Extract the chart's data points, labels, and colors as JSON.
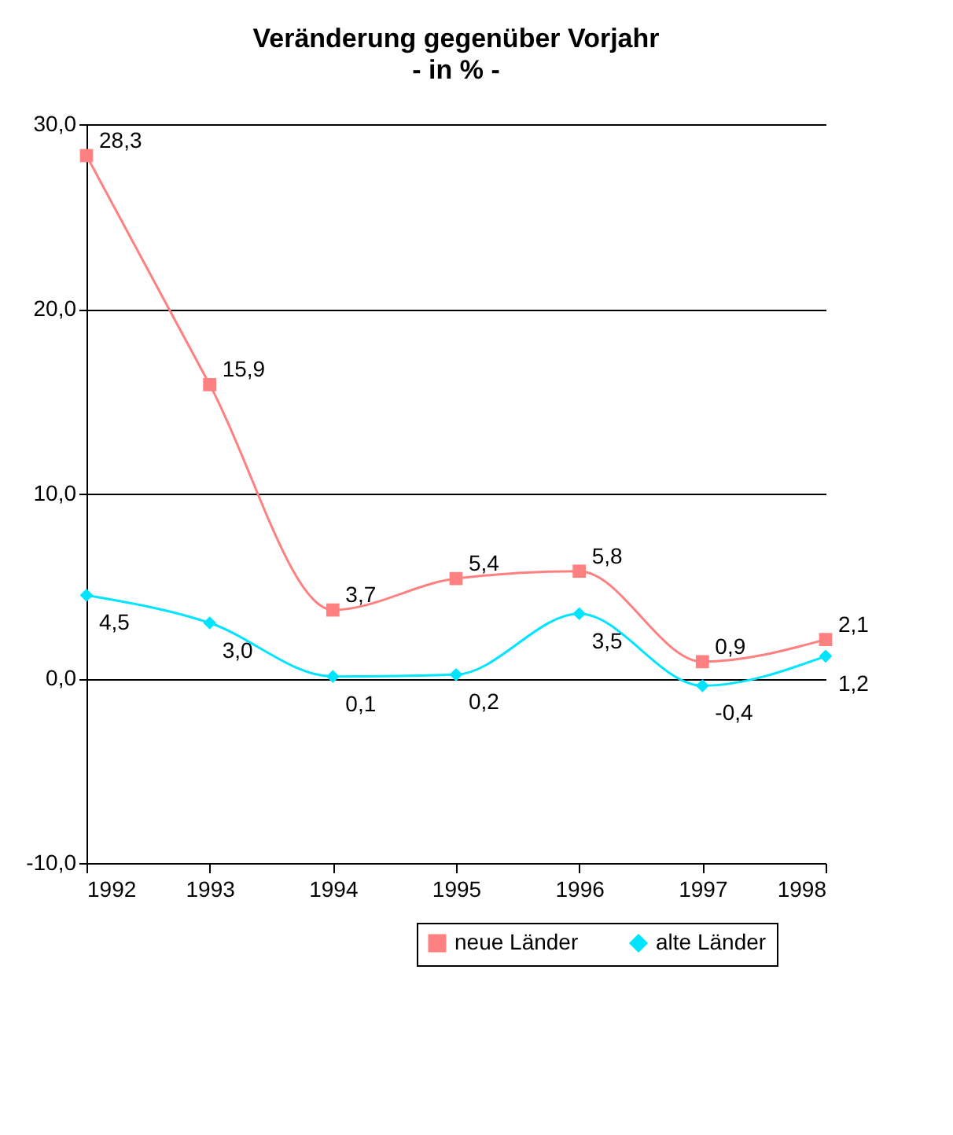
{
  "chart_data": {
    "type": "line",
    "title": "Veränderung gegenüber Vorjahr",
    "subtitle": "- in % -",
    "categories": [
      "1992",
      "1993",
      "1994",
      "1995",
      "1996",
      "1997",
      "1998"
    ],
    "series": [
      {
        "name": "neue Länder",
        "color": "#ff8080",
        "marker": "square",
        "values": [
          28.3,
          15.9,
          3.7,
          5.4,
          5.8,
          0.9,
          2.1
        ],
        "value_labels": [
          "28,3",
          "15,9",
          "3,7",
          "5,4",
          "5,8",
          "0,9",
          "2,1"
        ]
      },
      {
        "name": "alte Länder",
        "color": "#00e5ff",
        "marker": "diamond",
        "values": [
          4.5,
          3.0,
          0.1,
          0.2,
          3.5,
          -0.4,
          1.2
        ],
        "value_labels": [
          "4,5",
          "3,0",
          "0,1",
          "0,2",
          "3,5",
          "-0,4",
          "1,2"
        ]
      }
    ],
    "ylim": [
      -10,
      30
    ],
    "yticks": [
      {
        "value": -10,
        "label": "-10,0"
      },
      {
        "value": 0,
        "label": "0,0"
      },
      {
        "value": 10,
        "label": "10,0"
      },
      {
        "value": 20,
        "label": "20,0"
      },
      {
        "value": 30,
        "label": "30,0"
      }
    ],
    "grid": "y",
    "legend": "bottom right"
  }
}
